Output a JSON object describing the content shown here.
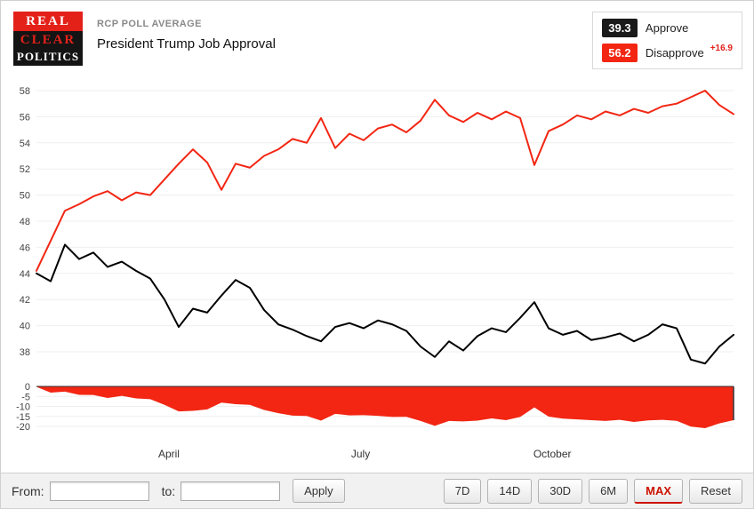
{
  "header": {
    "logo": {
      "line1": "REAL",
      "line2": "CLEAR",
      "line3": "POLITICS"
    },
    "kicker": "RCP POLL AVERAGE",
    "title": "President Trump Job Approval"
  },
  "legend": {
    "approve": {
      "value": "39.3",
      "label": "Approve",
      "color": "#1a1a1a"
    },
    "disapprove": {
      "value": "56.2",
      "label": "Disapprove",
      "color": "#f22613"
    },
    "spread": "+16.9"
  },
  "controls": {
    "from_label": "From:",
    "from_value": "",
    "to_label": "to:",
    "to_value": "",
    "apply": "Apply",
    "ranges": [
      "7D",
      "14D",
      "30D",
      "6M",
      "MAX"
    ],
    "active_range": "MAX",
    "reset": "Reset"
  },
  "chart_data": {
    "type": "line",
    "title": "President Trump Job Approval",
    "subtitle": "RCP Poll Average",
    "legend_position": "top-right",
    "grid": true,
    "colors": {
      "approve": "#000000",
      "disapprove": "#f22613",
      "spread": "#f22613"
    },
    "yticks_main": [
      58,
      56,
      54,
      52,
      50,
      48,
      46,
      44,
      42,
      40,
      38
    ],
    "ylim_main": [
      37,
      58.5
    ],
    "yticks_spread": [
      0,
      -5,
      -10,
      -15,
      -20
    ],
    "ylim_spread": [
      -22,
      0
    ],
    "xticks": [
      {
        "label": "April",
        "pos": 0.19
      },
      {
        "label": "July",
        "pos": 0.465
      },
      {
        "label": "October",
        "pos": 0.74
      }
    ],
    "series": [
      {
        "name": "Approve",
        "color": "#000000",
        "values": [
          44.0,
          43.4,
          46.2,
          45.1,
          45.6,
          44.5,
          44.9,
          44.2,
          43.6,
          42.0,
          39.9,
          41.3,
          41.0,
          42.3,
          43.5,
          42.9,
          41.2,
          40.1,
          39.7,
          39.2,
          38.8,
          39.9,
          40.2,
          39.8,
          40.4,
          40.1,
          39.6,
          38.4,
          37.6,
          38.8,
          38.1,
          39.2,
          39.8,
          39.5,
          40.6,
          41.8,
          39.8,
          39.3,
          39.6,
          38.9,
          39.1,
          39.4,
          38.8,
          39.3,
          40.1,
          39.8,
          37.4,
          37.1,
          38.4,
          39.3
        ]
      },
      {
        "name": "Disapprove",
        "color": "#f22613",
        "values": [
          44.2,
          46.5,
          48.8,
          49.3,
          49.9,
          50.3,
          49.6,
          50.2,
          50.0,
          51.2,
          52.4,
          53.5,
          52.5,
          50.4,
          52.4,
          52.1,
          53.0,
          53.5,
          54.3,
          54.0,
          55.9,
          53.6,
          54.7,
          54.2,
          55.1,
          55.4,
          54.8,
          55.7,
          57.3,
          56.1,
          55.6,
          56.3,
          55.8,
          56.4,
          55.9,
          52.3,
          54.9,
          55.4,
          56.1,
          55.8,
          56.4,
          56.1,
          56.6,
          56.3,
          56.8,
          57.0,
          57.5,
          58.0,
          56.9,
          56.2
        ]
      }
    ],
    "spread_note": "Lower panel shows Approve minus Disapprove (negative spread), final value -16.9"
  }
}
